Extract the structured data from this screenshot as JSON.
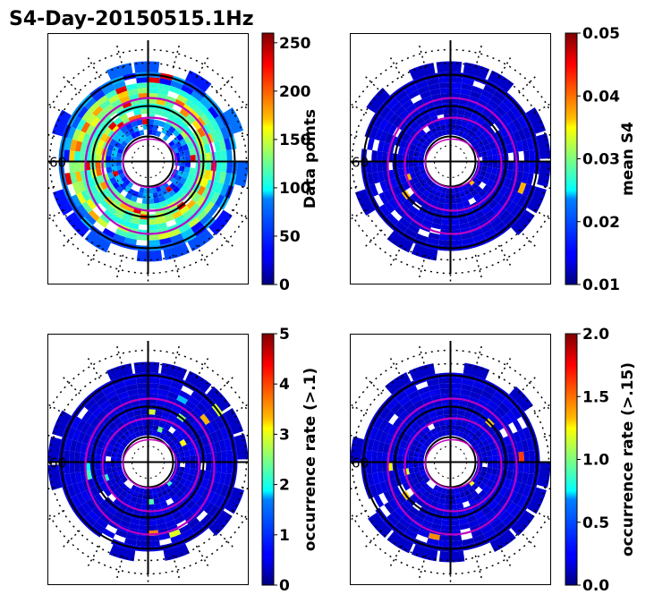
{
  "figure_title": "S4-Day-20150515.1Hz",
  "chart_data": [
    {
      "type": "heatmap",
      "projection": "polar",
      "panel": "top-left",
      "colormap": "jet",
      "colorbar": {
        "label": "Data points",
        "min": 0,
        "max": 260,
        "ticks": [
          "0",
          "50",
          "100",
          "150",
          "200",
          "250"
        ]
      },
      "lat_label": "60",
      "magnetic_contours": "magenta",
      "activity": "high"
    },
    {
      "type": "heatmap",
      "projection": "polar",
      "panel": "top-right",
      "colormap": "jet",
      "colorbar": {
        "label": "mean S4",
        "min": 0.01,
        "max": 0.05,
        "ticks": [
          "0.01",
          "0.02",
          "0.03",
          "0.04",
          "0.05"
        ]
      },
      "lat_label": "60",
      "magnetic_contours": "magenta",
      "activity": "low"
    },
    {
      "type": "heatmap",
      "projection": "polar",
      "panel": "bottom-left",
      "colormap": "jet",
      "colorbar": {
        "label": "occurrence rate (>.1)",
        "min": 0,
        "max": 5,
        "ticks": [
          "0",
          "1",
          "2",
          "3",
          "4",
          "5"
        ]
      },
      "lat_label": "60",
      "magnetic_contours": "magenta",
      "activity": "sparse"
    },
    {
      "type": "heatmap",
      "projection": "polar",
      "panel": "bottom-right",
      "colormap": "jet",
      "colorbar": {
        "label": "occurrence rate (>.15)",
        "min": 0.0,
        "max": 2.0,
        "ticks": [
          "0.0",
          "0.5",
          "1.0",
          "1.5",
          "2.0"
        ]
      },
      "lat_label": "60",
      "magnetic_contours": "magenta",
      "activity": "very-sparse"
    }
  ]
}
